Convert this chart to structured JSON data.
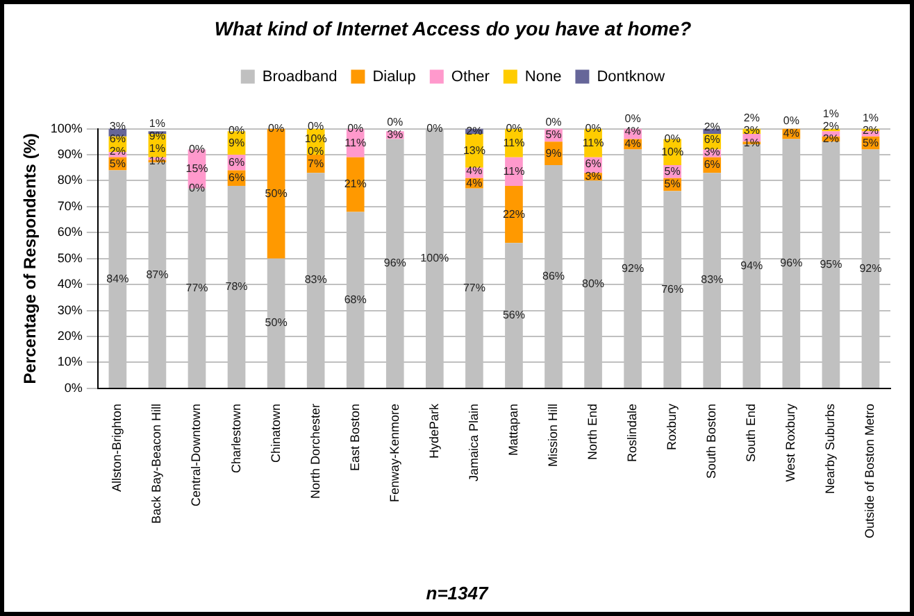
{
  "chart_data": {
    "type": "bar",
    "stacked": true,
    "title": "What kind of Internet Access do you have at home?",
    "ylabel": "Percentage of Respondents (%)",
    "categories": [
      "Allston-Brighton",
      "Back Bay-Beacon Hill",
      "Central-Downtown",
      "Charlestown",
      "Chinatown",
      "North Dorchester",
      "East Boston",
      "Fenway-Kenmore",
      "HydePark",
      "Jamaica Plain",
      "Mattapan",
      "Mission Hill",
      "North End",
      "Roslindale",
      "Roxbury",
      "South Boston",
      "South End",
      "West Roxbury",
      "Nearby Suburbs",
      "Outside of Boston Metro"
    ],
    "series": [
      {
        "name": "Broadband",
        "color": "#c0c0c0",
        "values": [
          84,
          87,
          77,
          78,
          50,
          83,
          68,
          96,
          100,
          77,
          56,
          86,
          80,
          92,
          76,
          83,
          94,
          96,
          95,
          92
        ],
        "value_labels": [
          "84%",
          "87%",
          "77%",
          "78%",
          "50%",
          "83%",
          "68%",
          "96%",
          "100%",
          "77%",
          "56%",
          "86%",
          "80%",
          "92%",
          "76%",
          "83%",
          "94%",
          "96%",
          "95%",
          "92%"
        ]
      },
      {
        "name": "Dialup",
        "color": "#ff9900",
        "values": [
          5,
          1,
          0,
          6,
          50,
          7,
          21,
          0,
          0,
          4,
          22,
          9,
          3,
          4,
          5,
          6,
          1,
          4,
          2,
          5
        ],
        "value_labels": [
          "5%",
          "1%",
          "0%",
          "6%",
          "50%",
          "7%",
          "21%",
          null,
          null,
          "4%",
          "22%",
          "9%",
          "3%",
          "4%",
          "5%",
          "6%",
          "1%",
          "4%",
          "2%",
          "5%"
        ]
      },
      {
        "name": "Other",
        "color": "#ff99cc",
        "values": [
          2,
          1,
          15,
          6,
          0,
          0,
          11,
          3,
          0,
          4,
          11,
          5,
          6,
          4,
          5,
          3,
          3,
          0,
          2,
          2
        ],
        "value_labels": [
          "2%",
          "1%",
          "15%",
          "6%",
          null,
          "0%",
          "11%",
          "3%",
          null,
          "4%",
          "11%",
          "5%",
          "6%",
          "4%",
          "5%",
          "3%",
          "3%",
          null,
          "2%",
          "2%"
        ]
      },
      {
        "name": "None",
        "color": "#ffcc00",
        "values": [
          6,
          9,
          0,
          9,
          0,
          10,
          0,
          0,
          0,
          13,
          11,
          0,
          11,
          0,
          10,
          6,
          2,
          0,
          1,
          1
        ],
        "value_labels": [
          "6%",
          "9%",
          null,
          "9%",
          null,
          "10%",
          null,
          null,
          null,
          "13%",
          "11%",
          null,
          "11%",
          null,
          "10%",
          "6%",
          "2%",
          null,
          "1%",
          "1%"
        ]
      },
      {
        "name": "Dontknow",
        "color": "#666699",
        "values": [
          3,
          1,
          0,
          0,
          0,
          0,
          0,
          0,
          0,
          2,
          0,
          0,
          0,
          0,
          0,
          2,
          0,
          0,
          0,
          0
        ],
        "value_labels": [
          "3%",
          "1%",
          "0%",
          "0%",
          "0%",
          "0%",
          "0%",
          "0%",
          "0%",
          "2%",
          "0%",
          "0%",
          "0%",
          "0%",
          "0%",
          "2%",
          null,
          "0%",
          null,
          null
        ]
      }
    ],
    "ylim": [
      0,
      100
    ],
    "yticks": [
      {
        "value": 0,
        "label": "0%"
      },
      {
        "value": 10,
        "label": "10%"
      },
      {
        "value": 20,
        "label": "20%"
      },
      {
        "value": 30,
        "label": "30%"
      },
      {
        "value": 40,
        "label": "40%"
      },
      {
        "value": 50,
        "label": "50%"
      },
      {
        "value": 60,
        "label": "60%"
      },
      {
        "value": 70,
        "label": "70%"
      },
      {
        "value": 80,
        "label": "80%"
      },
      {
        "value": 90,
        "label": "90%"
      },
      {
        "value": 100,
        "label": "100%"
      }
    ],
    "grid": "y",
    "legend": "top",
    "annotations": [
      "n=1347"
    ]
  }
}
